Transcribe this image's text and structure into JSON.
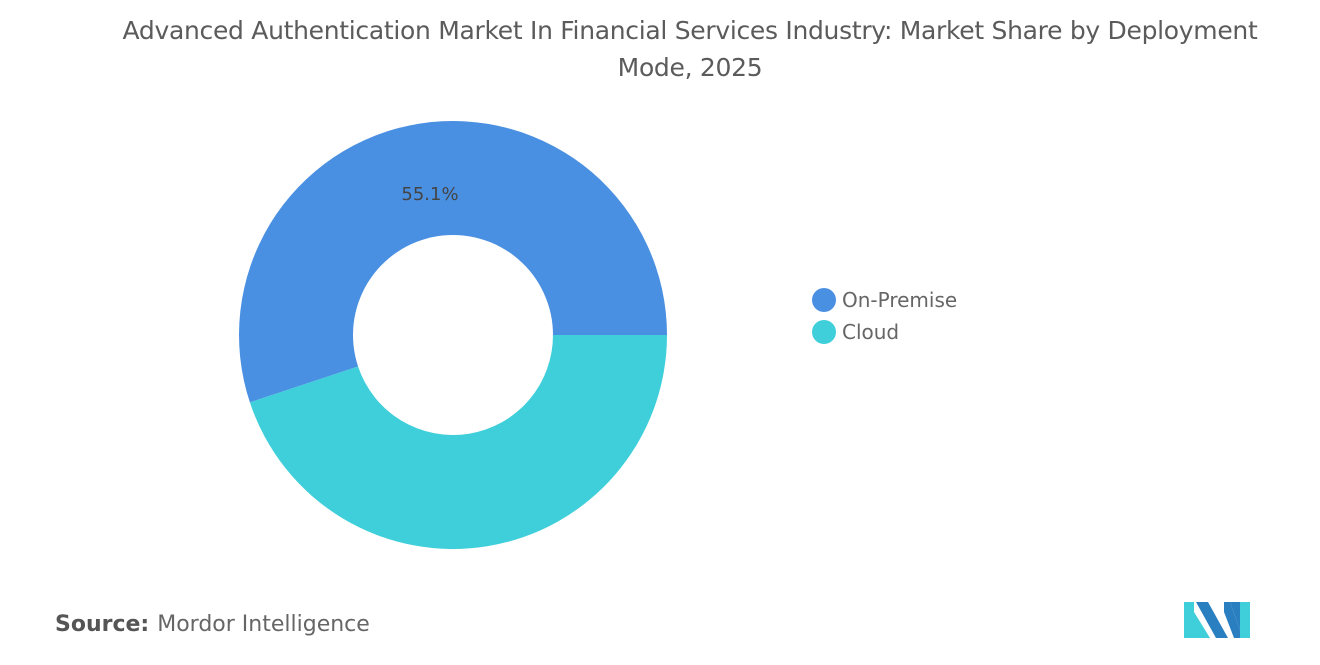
{
  "chart_data": {
    "type": "pie",
    "donut": true,
    "title": "Advanced Authentication Market In Financial Services Industry: Market Share by Deployment Mode, 2025",
    "categories": [
      "On-Premise",
      "Cloud"
    ],
    "values": [
      55.1,
      44.9
    ],
    "data_labels": [
      "55.1%",
      ""
    ],
    "colors": [
      "#4a90e2",
      "#3ecfda"
    ],
    "legend_position": "right"
  },
  "source": {
    "label": "Source:",
    "value": "Mordor Intelligence"
  },
  "logo": {
    "colors": [
      "#2a7fc1",
      "#3ecfda"
    ]
  }
}
